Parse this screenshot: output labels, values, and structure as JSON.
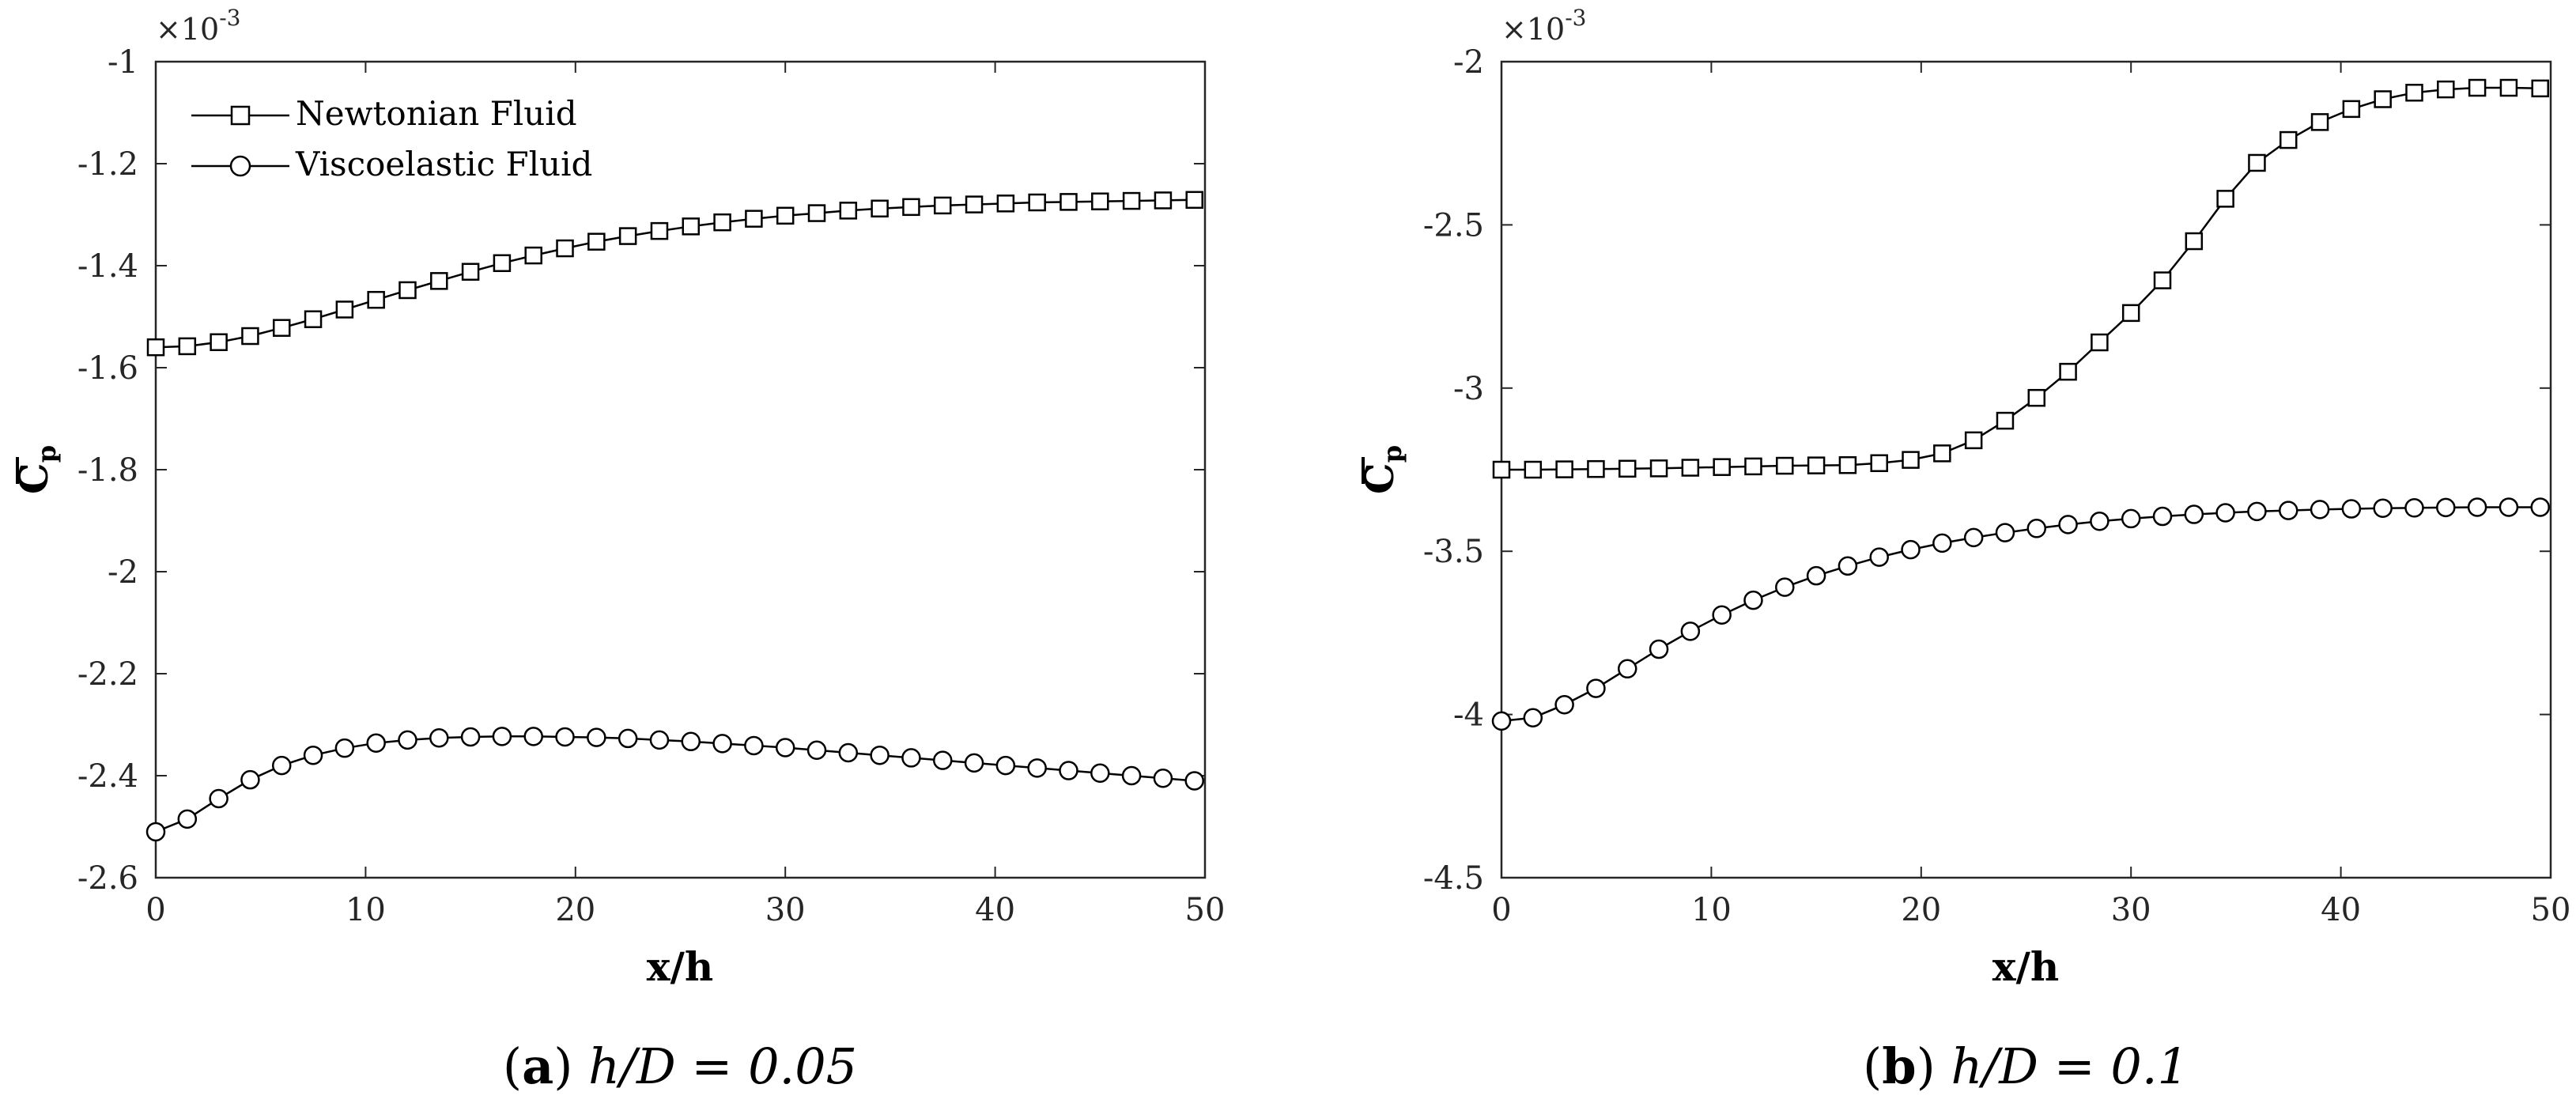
{
  "chart_data": [
    {
      "type": "line",
      "panel": "a",
      "caption": {
        "letter": "a",
        "expression": "h/D = 0.05"
      },
      "xlabel": "x/h",
      "ylabel": "C_p",
      "y_exponent": "×10",
      "y_exponent_power": "-3",
      "xlim": [
        0,
        50
      ],
      "ylim": [
        -2.6,
        -1
      ],
      "xticks": [
        0,
        10,
        20,
        30,
        40,
        50
      ],
      "yticks": [
        -2.6,
        -2.4,
        -2.2,
        -2,
        -1.8,
        -1.6,
        -1.4,
        -1.2,
        -1
      ],
      "ytick_labels": [
        "-2.6",
        "-2.4",
        "-2.2",
        "-2",
        "-1.8",
        "-1.6",
        "-1.4",
        "-1.2",
        "-1"
      ],
      "grid": false,
      "legend": {
        "position": "top-left"
      },
      "series": [
        {
          "name": "Newtonian Fluid",
          "marker": "square",
          "x": [
            0,
            1.5,
            3,
            4.5,
            6,
            7.5,
            9,
            10.5,
            12,
            13.5,
            15,
            16.5,
            18,
            19.5,
            21,
            22.5,
            24,
            25.5,
            27,
            28.5,
            30,
            31.5,
            33,
            34.5,
            36,
            37.5,
            39,
            40.5,
            42,
            43.5,
            45,
            46.5,
            48,
            49.5
          ],
          "y": [
            -1.56,
            -1.558,
            -1.55,
            -1.538,
            -1.522,
            -1.505,
            -1.486,
            -1.467,
            -1.448,
            -1.43,
            -1.412,
            -1.395,
            -1.38,
            -1.366,
            -1.353,
            -1.342,
            -1.332,
            -1.323,
            -1.315,
            -1.308,
            -1.302,
            -1.297,
            -1.292,
            -1.288,
            -1.285,
            -1.282,
            -1.28,
            -1.278,
            -1.276,
            -1.275,
            -1.274,
            -1.273,
            -1.272,
            -1.271
          ]
        },
        {
          "name": "Viscoelastic Fluid",
          "marker": "circle",
          "x": [
            0,
            1.5,
            3,
            4.5,
            6,
            7.5,
            9,
            10.5,
            12,
            13.5,
            15,
            16.5,
            18,
            19.5,
            21,
            22.5,
            24,
            25.5,
            27,
            28.5,
            30,
            31.5,
            33,
            34.5,
            36,
            37.5,
            39,
            40.5,
            42,
            43.5,
            45,
            46.5,
            48,
            49.5
          ],
          "y": [
            -2.51,
            -2.485,
            -2.445,
            -2.408,
            -2.38,
            -2.36,
            -2.346,
            -2.336,
            -2.33,
            -2.326,
            -2.324,
            -2.323,
            -2.323,
            -2.324,
            -2.325,
            -2.327,
            -2.33,
            -2.333,
            -2.337,
            -2.341,
            -2.345,
            -2.35,
            -2.355,
            -2.36,
            -2.365,
            -2.37,
            -2.375,
            -2.38,
            -2.385,
            -2.39,
            -2.395,
            -2.4,
            -2.405,
            -2.41
          ]
        }
      ]
    },
    {
      "type": "line",
      "panel": "b",
      "caption": {
        "letter": "b",
        "expression": "h/D = 0.1"
      },
      "xlabel": "x/h",
      "ylabel": "C_p",
      "y_exponent": "×10",
      "y_exponent_power": "-3",
      "xlim": [
        0,
        50
      ],
      "ylim": [
        -4.5,
        -2
      ],
      "xticks": [
        0,
        10,
        20,
        30,
        40,
        50
      ],
      "yticks": [
        -4.5,
        -4,
        -3.5,
        -3,
        -2.5,
        -2
      ],
      "ytick_labels": [
        "-4.5",
        "-4",
        "-3.5",
        "-3",
        "-2.5",
        "-2"
      ],
      "grid": false,
      "series": [
        {
          "name": "Newtonian Fluid",
          "marker": "square",
          "x": [
            0,
            1.5,
            3,
            4.5,
            6,
            7.5,
            9,
            10.5,
            12,
            13.5,
            15,
            16.5,
            18,
            19.5,
            21,
            22.5,
            24,
            25.5,
            27,
            28.5,
            30,
            31.5,
            33,
            34.5,
            36,
            37.5,
            39,
            40.5,
            42,
            43.5,
            45,
            46.5,
            48,
            49.5
          ],
          "y": [
            -3.25,
            -3.25,
            -3.249,
            -3.248,
            -3.247,
            -3.246,
            -3.244,
            -3.242,
            -3.24,
            -3.238,
            -3.237,
            -3.236,
            -3.23,
            -3.22,
            -3.2,
            -3.16,
            -3.1,
            -3.03,
            -2.95,
            -2.86,
            -2.77,
            -2.67,
            -2.55,
            -2.42,
            -2.31,
            -2.24,
            -2.185,
            -2.145,
            -2.115,
            -2.095,
            -2.085,
            -2.08,
            -2.08,
            -2.082
          ]
        },
        {
          "name": "Viscoelastic Fluid",
          "marker": "circle",
          "x": [
            0,
            1.5,
            3,
            4.5,
            6,
            7.5,
            9,
            10.5,
            12,
            13.5,
            15,
            16.5,
            18,
            19.5,
            21,
            22.5,
            24,
            25.5,
            27,
            28.5,
            30,
            31.5,
            33,
            34.5,
            36,
            37.5,
            39,
            40.5,
            42,
            43.5,
            45,
            46.5,
            48,
            49.5
          ],
          "y": [
            -4.02,
            -4.01,
            -3.97,
            -3.92,
            -3.86,
            -3.8,
            -3.745,
            -3.695,
            -3.65,
            -3.61,
            -3.575,
            -3.545,
            -3.518,
            -3.495,
            -3.475,
            -3.458,
            -3.443,
            -3.43,
            -3.418,
            -3.408,
            -3.4,
            -3.393,
            -3.387,
            -3.382,
            -3.378,
            -3.375,
            -3.372,
            -3.37,
            -3.368,
            -3.367,
            -3.366,
            -3.365,
            -3.365,
            -3.365
          ]
        }
      ]
    }
  ]
}
